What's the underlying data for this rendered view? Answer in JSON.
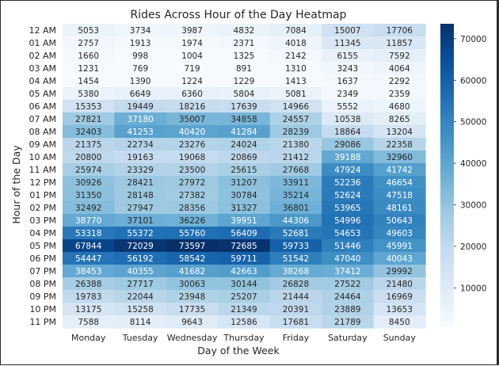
{
  "chart_data": {
    "type": "heatmap",
    "title": "Rides Across Hour of the Day Heatmap",
    "xlabel": "Day of the Week",
    "ylabel": "Hour of the Day",
    "x": [
      "Monday",
      "Tuesday",
      "Wednesday",
      "Thursday",
      "Friday",
      "Saturday",
      "Sunday"
    ],
    "y": [
      "12 AM",
      "01 AM",
      "02 AM",
      "03 AM",
      "04 AM",
      "05 AM",
      "06 AM",
      "07 AM",
      "08 AM",
      "09 AM",
      "10 AM",
      "11 AM",
      "12 PM",
      "01 PM",
      "02 PM",
      "03 PM",
      "04 PM",
      "05 PM",
      "06 PM",
      "07 PM",
      "08 PM",
      "09 PM",
      "10 PM",
      "11 PM"
    ],
    "values": [
      [
        5053,
        3734,
        3987,
        4832,
        7084,
        15007,
        17706
      ],
      [
        2757,
        1913,
        1974,
        2371,
        4018,
        11345,
        11857
      ],
      [
        1660,
        998,
        1004,
        1325,
        2142,
        6155,
        7592
      ],
      [
        1231,
        769,
        719,
        891,
        1310,
        3243,
        4064
      ],
      [
        1454,
        1390,
        1224,
        1229,
        1413,
        1637,
        2292
      ],
      [
        5380,
        6649,
        6360,
        5804,
        5081,
        2349,
        2359
      ],
      [
        15353,
        19449,
        18216,
        17639,
        14966,
        5552,
        4680
      ],
      [
        27821,
        37180,
        35007,
        34858,
        24557,
        10538,
        8265
      ],
      [
        32403,
        41253,
        40420,
        41284,
        28239,
        18864,
        13204
      ],
      [
        21375,
        22734,
        23276,
        24024,
        21380,
        29086,
        22358
      ],
      [
        20800,
        19163,
        19068,
        20869,
        21412,
        39188,
        32960
      ],
      [
        25974,
        23329,
        23500,
        25615,
        27668,
        47924,
        41742
      ],
      [
        30926,
        28421,
        27972,
        31207,
        33911,
        52236,
        46654
      ],
      [
        31350,
        28148,
        27382,
        30784,
        35214,
        52624,
        47518
      ],
      [
        32492,
        27947,
        28356,
        31327,
        36801,
        53965,
        48161
      ],
      [
        38770,
        37101,
        36226,
        39951,
        44306,
        54996,
        50643
      ],
      [
        53318,
        55372,
        55760,
        56409,
        52681,
        54653,
        49603
      ],
      [
        67844,
        72029,
        73597,
        72685,
        59733,
        51446,
        45991
      ],
      [
        54447,
        56192,
        58542,
        59711,
        51542,
        47040,
        40043
      ],
      [
        38453,
        40355,
        41682,
        42663,
        38268,
        37412,
        29992
      ],
      [
        26388,
        27717,
        30063,
        30144,
        26828,
        27522,
        21480
      ],
      [
        19783,
        22044,
        23948,
        25207,
        21444,
        24464,
        16969
      ],
      [
        13175,
        15258,
        17735,
        21349,
        20391,
        23889,
        13653
      ],
      [
        7588,
        8114,
        9643,
        12586,
        17681,
        21789,
        8450
      ]
    ],
    "colorbar": {
      "colormap": "Blues",
      "min": 719,
      "max": 73597,
      "ticks": [
        10000,
        20000,
        30000,
        40000,
        50000,
        60000,
        70000
      ]
    },
    "grid": false,
    "legend": "colorbar right"
  }
}
